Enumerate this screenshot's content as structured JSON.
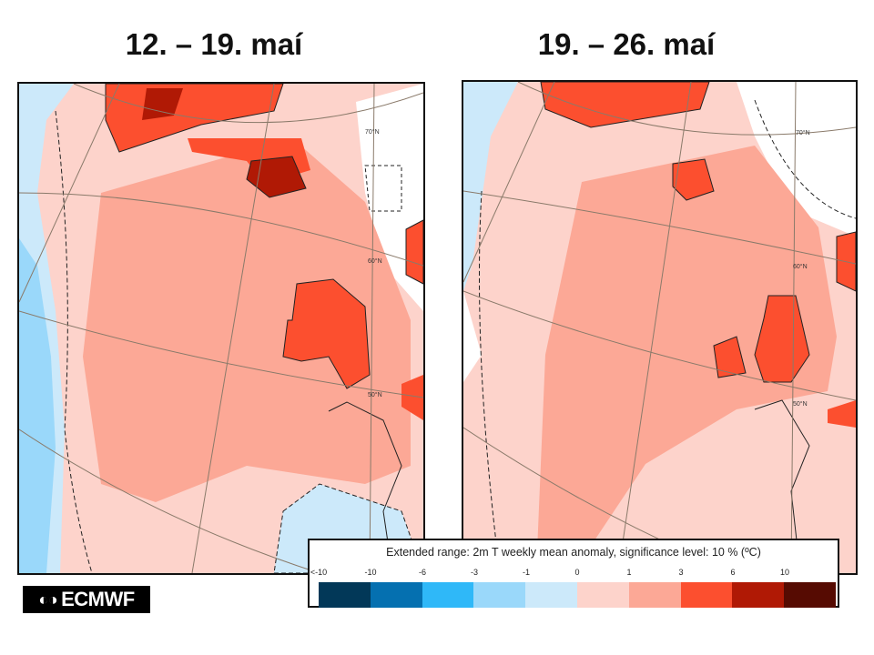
{
  "panels": [
    {
      "title": "12. – 19. maí",
      "lat_labels": [
        "70°N",
        "60°N",
        "50°N"
      ]
    },
    {
      "title": "19. – 26. maí",
      "lat_labels": [
        "70°N",
        "60°N",
        "50°N"
      ]
    }
  ],
  "legend": {
    "title": "Extended range: 2m T weekly mean anomaly, significance level: 10 % (ºC)",
    "ticks": [
      "<-10",
      "-10",
      "-6",
      "-3",
      "-1",
      "0",
      "1",
      "3",
      "6",
      "10"
    ],
    "colors": [
      "#023858",
      "#0570b0",
      "#2fb8f8",
      "#9ad8fa",
      "#cce9fa",
      "#fdd3cb",
      "#fca896",
      "#fc4f2f",
      "#b01905",
      "#560b02"
    ]
  },
  "logo": {
    "text": "ECMWF"
  }
}
